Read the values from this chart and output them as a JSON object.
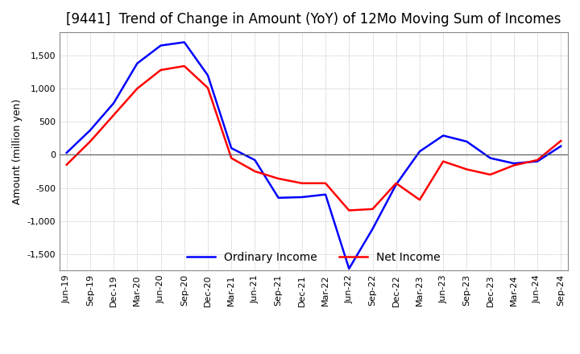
{
  "title": "[9441]  Trend of Change in Amount (YoY) of 12Mo Moving Sum of Incomes",
  "ylabel": "Amount (million yen)",
  "ylim": [
    -1750,
    1850
  ],
  "yticks": [
    -1500,
    -1000,
    -500,
    0,
    500,
    1000,
    1500
  ],
  "x_labels": [
    "Jun-19",
    "Sep-19",
    "Dec-19",
    "Mar-20",
    "Jun-20",
    "Sep-20",
    "Dec-20",
    "Mar-21",
    "Jun-21",
    "Sep-21",
    "Dec-21",
    "Mar-22",
    "Jun-22",
    "Sep-22",
    "Dec-22",
    "Mar-23",
    "Jun-23",
    "Sep-23",
    "Dec-23",
    "Mar-24",
    "Jun-24",
    "Sep-24"
  ],
  "ordinary_income": [
    30,
    370,
    780,
    1380,
    1650,
    1700,
    1200,
    100,
    -80,
    -650,
    -640,
    -600,
    -1720,
    -1120,
    -450,
    50,
    290,
    200,
    -50,
    -130,
    -100,
    130
  ],
  "net_income": [
    -150,
    200,
    600,
    1000,
    1280,
    1340,
    1010,
    -50,
    -250,
    -360,
    -430,
    -430,
    -840,
    -820,
    -430,
    -680,
    -100,
    -220,
    -300,
    -160,
    -80,
    210
  ],
  "ordinary_color": "#0000ff",
  "net_color": "#ff0000",
  "grid_color": "#aaaaaa",
  "background_color": "#ffffff",
  "title_fontsize": 12,
  "label_fontsize": 9,
  "tick_fontsize": 8,
  "legend_fontsize": 10
}
